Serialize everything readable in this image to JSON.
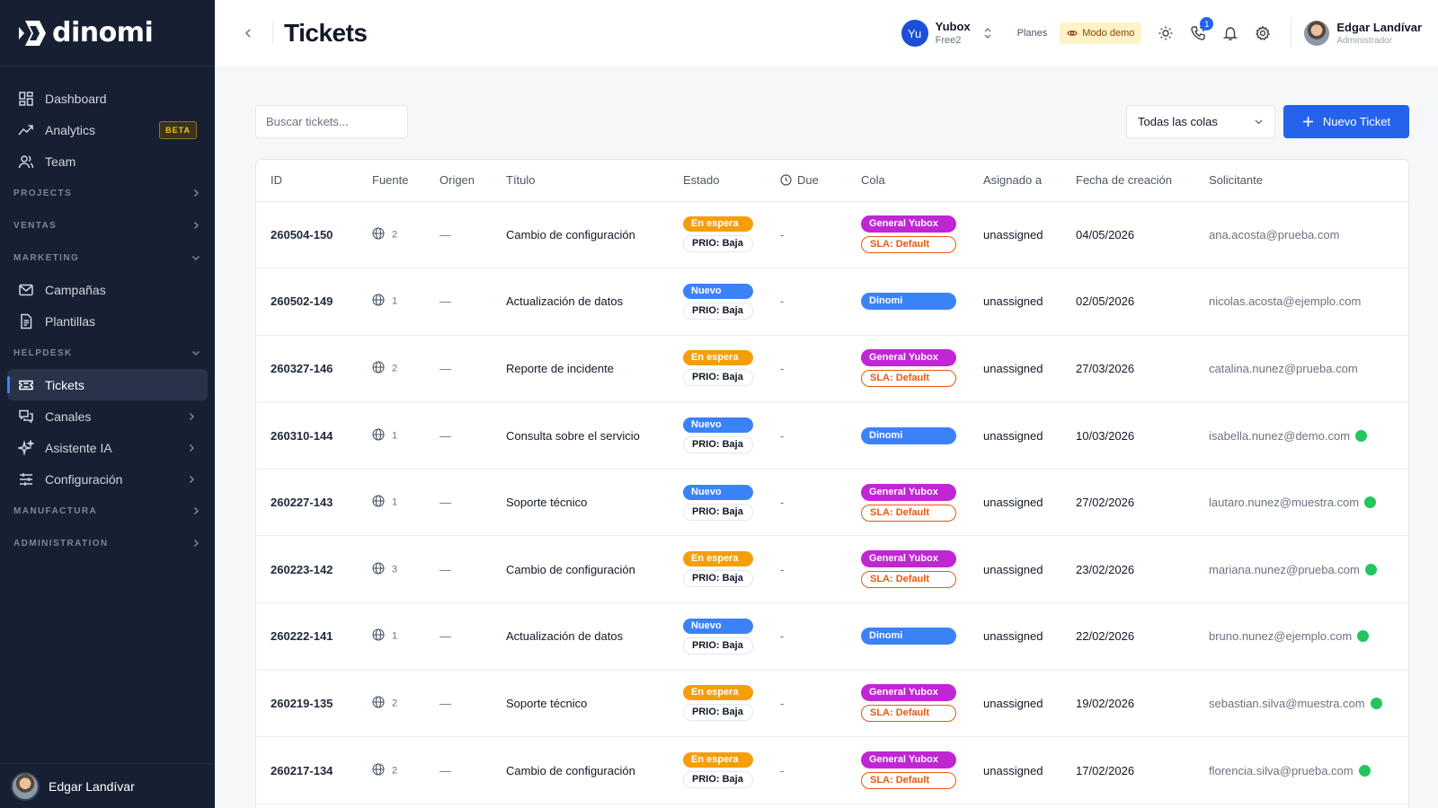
{
  "brand": {
    "name": "dinomi"
  },
  "sidebar": {
    "items": [
      {
        "label": "Dashboard",
        "icon": "dashboard-icon"
      },
      {
        "label": "Analytics",
        "icon": "analytics-icon",
        "badge": "BETA"
      },
      {
        "label": "Team",
        "icon": "team-icon"
      }
    ],
    "sections": {
      "projects": "PROJECTS",
      "ventas": "VENTAS",
      "marketing": "MARKETING",
      "helpdesk": "HELPDESK",
      "manufactura": "MANUFACTURA",
      "administration": "ADMINISTRATION"
    },
    "marketing_items": [
      {
        "label": "Campañas",
        "icon": "mail-icon"
      },
      {
        "label": "Plantillas",
        "icon": "document-icon"
      }
    ],
    "helpdesk_items": [
      {
        "label": "Tickets",
        "icon": "ticket-icon",
        "active": true
      },
      {
        "label": "Canales",
        "icon": "chat-icon"
      },
      {
        "label": "Asistente IA",
        "icon": "sparkle-icon"
      },
      {
        "label": "Configuración",
        "icon": "sliders-icon"
      }
    ],
    "footer_user": "Edgar Landívar"
  },
  "header": {
    "title": "Tickets",
    "org": {
      "initials": "Yu",
      "name": "Yubox",
      "plan": "Free2"
    },
    "planes": "Planes",
    "demo_mode": "Modo demo",
    "notification_count": "1",
    "user": {
      "name": "Edgar Landívar",
      "role": "Administrador"
    }
  },
  "toolbar": {
    "search_placeholder": "Buscar tickets...",
    "queue_filter": "Todas las colas",
    "new_ticket": "Nuevo Ticket"
  },
  "table": {
    "columns": [
      "ID",
      "Fuente",
      "Origen",
      "Título",
      "Estado",
      "Due",
      "Cola",
      "Asignado a",
      "Fecha de creación",
      "Solicitante"
    ],
    "rows": [
      {
        "id": "260504-150",
        "fuente": "2",
        "origen": "—",
        "titulo": "Cambio de configuración",
        "estado": "En espera",
        "prio": "PRIO: Baja",
        "due": "-",
        "cola": "General Yubox",
        "sla": "SLA: Default",
        "asignado": "unassigned",
        "fecha": "04/05/2026",
        "solicitante": "ana.acosta@prueba.com",
        "online": false
      },
      {
        "id": "260502-149",
        "fuente": "1",
        "origen": "—",
        "titulo": "Actualización de datos",
        "estado": "Nuevo",
        "prio": "PRIO: Baja",
        "due": "-",
        "cola": "Dinomi",
        "sla": "",
        "asignado": "unassigned",
        "fecha": "02/05/2026",
        "solicitante": "nicolas.acosta@ejemplo.com",
        "online": false
      },
      {
        "id": "260327-146",
        "fuente": "2",
        "origen": "—",
        "titulo": "Reporte de incidente",
        "estado": "En espera",
        "prio": "PRIO: Baja",
        "due": "-",
        "cola": "General Yubox",
        "sla": "SLA: Default",
        "asignado": "unassigned",
        "fecha": "27/03/2026",
        "solicitante": "catalina.nunez@prueba.com",
        "online": false
      },
      {
        "id": "260310-144",
        "fuente": "1",
        "origen": "—",
        "titulo": "Consulta sobre el servicio",
        "estado": "Nuevo",
        "prio": "PRIO: Baja",
        "due": "-",
        "cola": "Dinomi",
        "sla": "",
        "asignado": "unassigned",
        "fecha": "10/03/2026",
        "solicitante": "isabella.nunez@demo.com",
        "online": true
      },
      {
        "id": "260227-143",
        "fuente": "1",
        "origen": "—",
        "titulo": "Soporte técnico",
        "estado": "Nuevo",
        "prio": "PRIO: Baja",
        "due": "-",
        "cola": "General Yubox",
        "sla": "SLA: Default",
        "asignado": "unassigned",
        "fecha": "27/02/2026",
        "solicitante": "lautaro.nunez@muestra.com",
        "online": true
      },
      {
        "id": "260223-142",
        "fuente": "3",
        "origen": "—",
        "titulo": "Cambio de configuración",
        "estado": "En espera",
        "prio": "PRIO: Baja",
        "due": "-",
        "cola": "General Yubox",
        "sla": "SLA: Default",
        "asignado": "unassigned",
        "fecha": "23/02/2026",
        "solicitante": "mariana.nunez@prueba.com",
        "online": true
      },
      {
        "id": "260222-141",
        "fuente": "1",
        "origen": "—",
        "titulo": "Actualización de datos",
        "estado": "Nuevo",
        "prio": "PRIO: Baja",
        "due": "-",
        "cola": "Dinomi",
        "sla": "",
        "asignado": "unassigned",
        "fecha": "22/02/2026",
        "solicitante": "bruno.nunez@ejemplo.com",
        "online": true
      },
      {
        "id": "260219-135",
        "fuente": "2",
        "origen": "—",
        "titulo": "Soporte técnico",
        "estado": "En espera",
        "prio": "PRIO: Baja",
        "due": "-",
        "cola": "General Yubox",
        "sla": "SLA: Default",
        "asignado": "unassigned",
        "fecha": "19/02/2026",
        "solicitante": "sebastian.silva@muestra.com",
        "online": true
      },
      {
        "id": "260217-134",
        "fuente": "2",
        "origen": "—",
        "titulo": "Cambio de configuración",
        "estado": "En espera",
        "prio": "PRIO: Baja",
        "due": "-",
        "cola": "General Yubox",
        "sla": "SLA: Default",
        "asignado": "unassigned",
        "fecha": "17/02/2026",
        "solicitante": "florencia.silva@prueba.com",
        "online": true
      }
    ]
  },
  "colors": {
    "sidebar_bg": "#172033",
    "primary": "#2563eb",
    "status_waiting": "#f59e0b",
    "status_new": "#3b82f6",
    "queue_general": "#c026d3",
    "sla_border": "#ea580c",
    "online": "#22c55e"
  }
}
